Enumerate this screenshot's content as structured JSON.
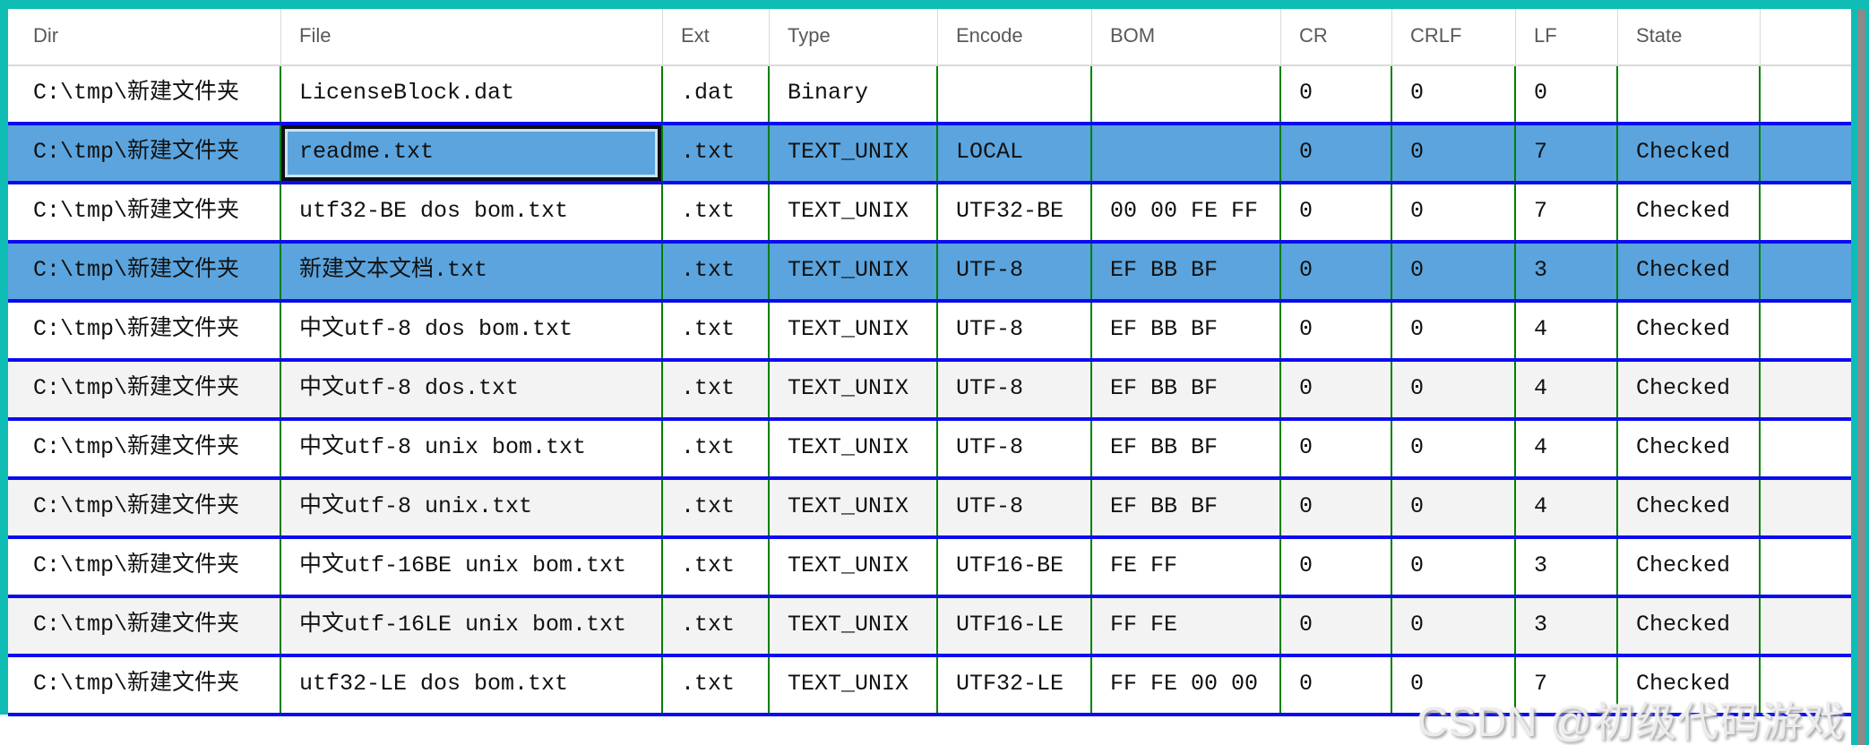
{
  "colors": {
    "window_border_teal": "#0fbcb4",
    "row_separator_blue": "#0b0bef",
    "cell_divider_green": "#008000",
    "selected_row_blue": "#5ba4de",
    "alt_row_gray": "#f3f3f3",
    "header_text_gray": "#595959",
    "scrollbar_thumb_gray": "#8a8a8a",
    "focus_border_black": "#0c1016"
  },
  "table": {
    "columns": [
      "Dir",
      "File",
      "Ext",
      "Type",
      "Encode",
      "BOM",
      "CR",
      "CRLF",
      "LF",
      "State",
      ""
    ],
    "rows": [
      {
        "dir": "C:\\tmp\\新建文件夹",
        "file": "LicenseBlock.dat",
        "ext": ".dat",
        "type": "Binary",
        "encode": "",
        "bom": "",
        "cr": "0",
        "crlf": "0",
        "lf": "0",
        "state": "",
        "selected": false,
        "shade": "white",
        "focused_cell": -1
      },
      {
        "dir": "C:\\tmp\\新建文件夹",
        "file": "readme.txt",
        "ext": ".txt",
        "type": "TEXT_UNIX",
        "encode": "LOCAL",
        "bom": "",
        "cr": "0",
        "crlf": "0",
        "lf": "7",
        "state": "Checked",
        "selected": true,
        "shade": "white",
        "focused_cell": 1
      },
      {
        "dir": "C:\\tmp\\新建文件夹",
        "file": "utf32-BE dos bom.txt",
        "ext": ".txt",
        "type": "TEXT_UNIX",
        "encode": "UTF32-BE",
        "bom": "00 00 FE FF",
        "cr": "0",
        "crlf": "0",
        "lf": "7",
        "state": "Checked",
        "selected": false,
        "shade": "white",
        "focused_cell": -1
      },
      {
        "dir": "C:\\tmp\\新建文件夹",
        "file": "新建文本文档.txt",
        "ext": ".txt",
        "type": "TEXT_UNIX",
        "encode": "UTF-8",
        "bom": "EF BB BF",
        "cr": "0",
        "crlf": "0",
        "lf": "3",
        "state": "Checked",
        "selected": true,
        "shade": "white",
        "focused_cell": -1
      },
      {
        "dir": "C:\\tmp\\新建文件夹",
        "file": "中文utf-8 dos bom.txt",
        "ext": ".txt",
        "type": "TEXT_UNIX",
        "encode": "UTF-8",
        "bom": "EF BB BF",
        "cr": "0",
        "crlf": "0",
        "lf": "4",
        "state": "Checked",
        "selected": false,
        "shade": "white",
        "focused_cell": -1
      },
      {
        "dir": "C:\\tmp\\新建文件夹",
        "file": "中文utf-8 dos.txt",
        "ext": ".txt",
        "type": "TEXT_UNIX",
        "encode": "UTF-8",
        "bom": "EF BB BF",
        "cr": "0",
        "crlf": "0",
        "lf": "4",
        "state": "Checked",
        "selected": false,
        "shade": "gray",
        "focused_cell": -1
      },
      {
        "dir": "C:\\tmp\\新建文件夹",
        "file": "中文utf-8 unix bom.txt",
        "ext": ".txt",
        "type": "TEXT_UNIX",
        "encode": "UTF-8",
        "bom": "EF BB BF",
        "cr": "0",
        "crlf": "0",
        "lf": "4",
        "state": "Checked",
        "selected": false,
        "shade": "white",
        "focused_cell": -1
      },
      {
        "dir": "C:\\tmp\\新建文件夹",
        "file": "中文utf-8 unix.txt",
        "ext": ".txt",
        "type": "TEXT_UNIX",
        "encode": "UTF-8",
        "bom": "EF BB BF",
        "cr": "0",
        "crlf": "0",
        "lf": "4",
        "state": "Checked",
        "selected": false,
        "shade": "gray",
        "focused_cell": -1
      },
      {
        "dir": "C:\\tmp\\新建文件夹",
        "file": "中文utf-16BE unix bom.txt",
        "ext": ".txt",
        "type": "TEXT_UNIX",
        "encode": "UTF16-BE",
        "bom": "FE FF",
        "cr": "0",
        "crlf": "0",
        "lf": "3",
        "state": "Checked",
        "selected": false,
        "shade": "white",
        "focused_cell": -1
      },
      {
        "dir": "C:\\tmp\\新建文件夹",
        "file": "中文utf-16LE unix bom.txt",
        "ext": ".txt",
        "type": "TEXT_UNIX",
        "encode": "UTF16-LE",
        "bom": "FF FE",
        "cr": "0",
        "crlf": "0",
        "lf": "3",
        "state": "Checked",
        "selected": false,
        "shade": "gray",
        "focused_cell": -1
      },
      {
        "dir": "C:\\tmp\\新建文件夹",
        "file": "utf32-LE dos bom.txt",
        "ext": ".txt",
        "type": "TEXT_UNIX",
        "encode": "UTF32-LE",
        "bom": "FF FE 00 00",
        "cr": "0",
        "crlf": "0",
        "lf": "7",
        "state": "Checked",
        "selected": false,
        "shade": "white",
        "focused_cell": -1
      }
    ]
  },
  "watermark": "CSDN @初级代码游戏"
}
